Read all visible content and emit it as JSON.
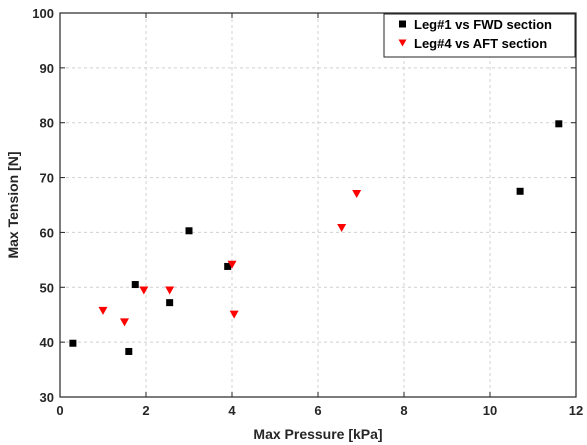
{
  "chart_data": {
    "type": "scatter",
    "xlabel": "Max Pressure [kPa]",
    "ylabel": "Max Tension [N]",
    "xlim": [
      0,
      12
    ],
    "ylim": [
      30,
      100
    ],
    "xticks": [
      0,
      2,
      4,
      6,
      8,
      10,
      12
    ],
    "yticks": [
      30,
      40,
      50,
      60,
      70,
      80,
      90,
      100
    ],
    "grid": true,
    "legend_position": "top-right",
    "series": [
      {
        "name": "Leg#1 vs FWD section",
        "marker": "square",
        "color": "#000000",
        "points": [
          [
            0.3,
            39.8
          ],
          [
            1.6,
            38.3
          ],
          [
            1.75,
            50.5
          ],
          [
            2.55,
            47.2
          ],
          [
            3.0,
            60.3
          ],
          [
            3.9,
            53.8
          ],
          [
            10.7,
            67.5
          ],
          [
            11.6,
            79.8
          ]
        ]
      },
      {
        "name": "Leg#4 vs AFT section",
        "marker": "triangle-down",
        "color": "#ff0000",
        "points": [
          [
            1.0,
            45.8
          ],
          [
            1.5,
            43.7
          ],
          [
            1.95,
            49.5
          ],
          [
            2.55,
            49.5
          ],
          [
            4.0,
            54.2
          ],
          [
            4.05,
            45.1
          ],
          [
            6.55,
            60.9
          ],
          [
            6.9,
            67.1
          ]
        ]
      }
    ]
  }
}
